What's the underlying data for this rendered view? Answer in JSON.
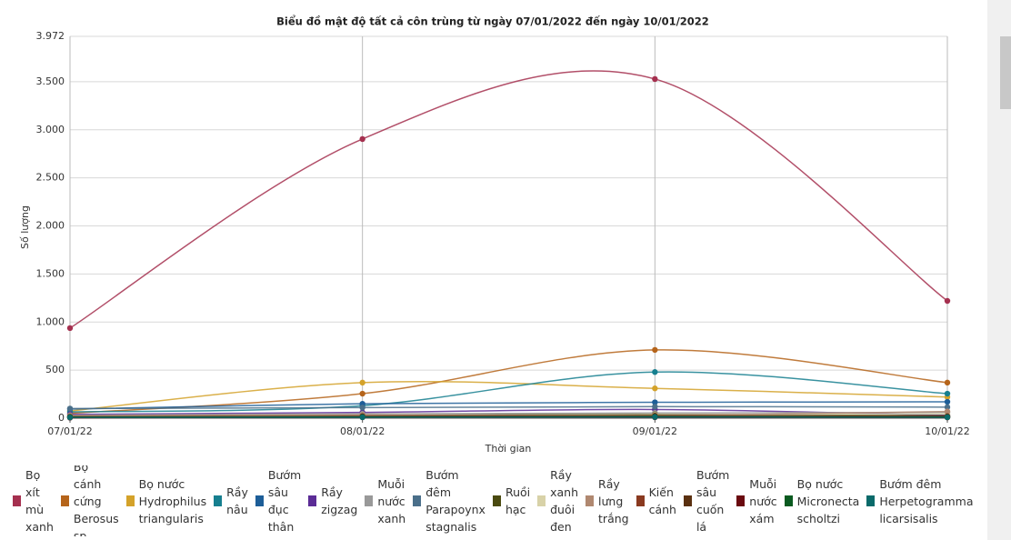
{
  "chart_data": {
    "type": "line",
    "title": "Biểu đồ mật độ tất cả côn trùng từ ngày 07/01/2022 đến ngày 10/01/2022",
    "x_label": "Thời gian",
    "y_label": "Số lượng",
    "categories": [
      "07/01/22",
      "08/01/22",
      "09/01/22",
      "10/01/22"
    ],
    "ylim": [
      0,
      3972
    ],
    "yticks": [
      0,
      500,
      {
        "value": 1000,
        "label": "1.000"
      },
      {
        "value": 1500,
        "label": "1.500"
      },
      {
        "value": 2000,
        "label": "2.000"
      },
      {
        "value": 2500,
        "label": "2.500"
      },
      {
        "value": 3000,
        "label": "3.000"
      },
      {
        "value": 3500,
        "label": "3.500"
      },
      {
        "value": 3972,
        "label": "3.972"
      }
    ],
    "grid": true,
    "smooth": true,
    "legend": "bottom",
    "series": [
      {
        "name": "Bọ xít mù xanh",
        "color": "#a5304f",
        "values": [
          937,
          2904,
          3528,
          1220
        ]
      },
      {
        "name": "Bọ cánh cứng Berosus sp.",
        "color": "#b5641a",
        "values": [
          50,
          255,
          710,
          370
        ]
      },
      {
        "name": "Bọ nước Hydrophilus triangularis",
        "color": "#d4a22a",
        "values": [
          75,
          370,
          310,
          220
        ]
      },
      {
        "name": "Rầy nâu",
        "color": "#167f8f",
        "values": [
          65,
          130,
          480,
          255
        ]
      },
      {
        "name": "Bướm sâu đục thân",
        "color": "#1d5e98",
        "values": [
          95,
          150,
          165,
          170
        ]
      },
      {
        "name": "Rầy zigzag",
        "color": "#5b2c96",
        "values": [
          40,
          60,
          90,
          30
        ]
      },
      {
        "name": "Muỗi nước xanh",
        "color": "#999999",
        "values": [
          30,
          45,
          55,
          60
        ]
      },
      {
        "name": "Bướm đêm Parapoynx stagnalis",
        "color": "#4a6f8a",
        "values": [
          100,
          110,
          120,
          115
        ]
      },
      {
        "name": "Ruồi hạc",
        "color": "#4a4a10",
        "values": [
          20,
          30,
          40,
          25
        ]
      },
      {
        "name": "Rầy xanh đuôi đen",
        "color": "#d8d2a8",
        "values": [
          15,
          25,
          35,
          45
        ]
      },
      {
        "name": "Rầy lưng trắng",
        "color": "#b08870",
        "values": [
          25,
          35,
          30,
          70
        ]
      },
      {
        "name": "Kiến cánh",
        "color": "#8a3a20",
        "values": [
          10,
          15,
          20,
          15
        ]
      },
      {
        "name": "Bướm sâu cuốn lá",
        "color": "#5a3010",
        "values": [
          15,
          20,
          25,
          20
        ]
      },
      {
        "name": "Muỗi nước xám",
        "color": "#6a0a10",
        "values": [
          5,
          10,
          10,
          8
        ]
      },
      {
        "name": "Bọ nước Micronecta scholtzi",
        "color": "#0a5a20",
        "values": [
          10,
          12,
          15,
          10
        ]
      },
      {
        "name": "Bướm đêm Herpetogramma licarsisalis",
        "color": "#0a6a6a",
        "values": [
          8,
          10,
          12,
          10
        ]
      }
    ]
  }
}
